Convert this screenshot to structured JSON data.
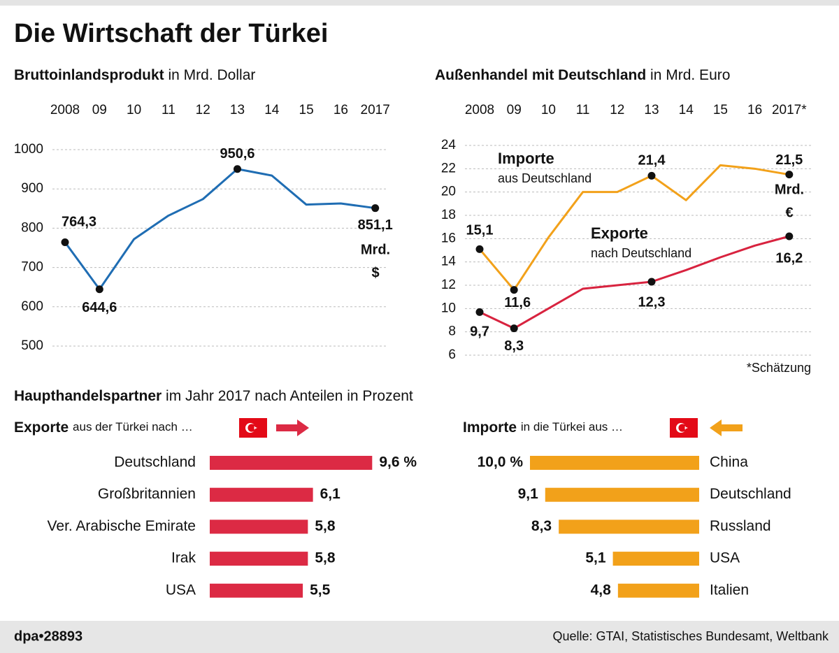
{
  "title": "Die Wirtschaft der Türkei",
  "chart_data": [
    {
      "type": "line",
      "title": "Bruttoinlandsprodukt",
      "subtitle": "in Mrd. Dollar",
      "categories": [
        "2008",
        "09",
        "10",
        "11",
        "12",
        "13",
        "14",
        "15",
        "16",
        "2017"
      ],
      "values": [
        764.3,
        644.6,
        772,
        832,
        874,
        950.6,
        934,
        860,
        863,
        851.1
      ],
      "value_labels": [
        "764,3",
        "644,6",
        null,
        null,
        null,
        "950,6",
        null,
        null,
        null,
        "851,1"
      ],
      "unit_note": [
        "Mrd.",
        "$"
      ],
      "color": "#1f6db3",
      "ylim": [
        500,
        1000
      ],
      "yticks": [
        500,
        600,
        700,
        800,
        900,
        1000
      ],
      "grid": true
    },
    {
      "type": "line",
      "title": "Außenhandel mit Deutschland",
      "subtitle": "in Mrd. Euro",
      "categories": [
        "2008",
        "09",
        "10",
        "11",
        "12",
        "13",
        "14",
        "15",
        "16",
        "2017*"
      ],
      "series": [
        {
          "name": "Importe",
          "subtitle": "aus Deutschland",
          "color": "#f2a11a",
          "values": [
            15.1,
            11.6,
            16.1,
            20.0,
            20.0,
            21.4,
            19.3,
            22.3,
            22.0,
            21.5
          ],
          "value_labels": [
            "15,1",
            "11,6",
            null,
            null,
            null,
            "21,4",
            null,
            null,
            null,
            "21,5"
          ]
        },
        {
          "name": "Exporte",
          "subtitle": "nach Deutschland",
          "color": "#d8233f",
          "values": [
            9.7,
            8.3,
            10.0,
            11.7,
            12.0,
            12.3,
            13.3,
            14.4,
            15.4,
            16.2
          ],
          "value_labels": [
            "9,7",
            "8,3",
            null,
            null,
            null,
            "12,3",
            null,
            null,
            null,
            "16,2"
          ]
        }
      ],
      "unit_note": [
        "Mrd.",
        "€"
      ],
      "note": "*Schätzung",
      "ylim": [
        6,
        24
      ],
      "yticks": [
        6,
        8,
        10,
        12,
        14,
        16,
        18,
        20,
        22,
        24
      ],
      "grid": true
    },
    {
      "type": "bar",
      "orientation": "horizontal",
      "title": "Exporte",
      "subtitle": "aus der Türkei nach …",
      "categories": [
        "Deutschland",
        "Großbritannien",
        "Ver. Arabische Emirate",
        "Irak",
        "USA"
      ],
      "values": [
        9.6,
        6.1,
        5.8,
        5.8,
        5.5
      ],
      "value_labels": [
        "9,6 %",
        "6,1",
        "5,8",
        "5,8",
        "5,5"
      ],
      "color": "#dc2a44"
    },
    {
      "type": "bar",
      "orientation": "horizontal",
      "title": "Importe",
      "subtitle": "in die Türkei aus …",
      "categories": [
        "China",
        "Deutschland",
        "Russland",
        "USA",
        "Italien"
      ],
      "values": [
        10.0,
        9.1,
        8.3,
        5.1,
        4.8
      ],
      "value_labels": [
        "10,0 %",
        "9,1",
        "8,3",
        "5,1",
        "4,8"
      ],
      "color": "#f2a11a"
    }
  ],
  "section": {
    "title": "Haupthandelspartner",
    "subtitle": "im Jahr 2017 nach Anteilen in Prozent"
  },
  "footer": {
    "id": "dpa•28893",
    "source": "Quelle: GTAI, Statistisches Bundesamt, Weltbank"
  }
}
